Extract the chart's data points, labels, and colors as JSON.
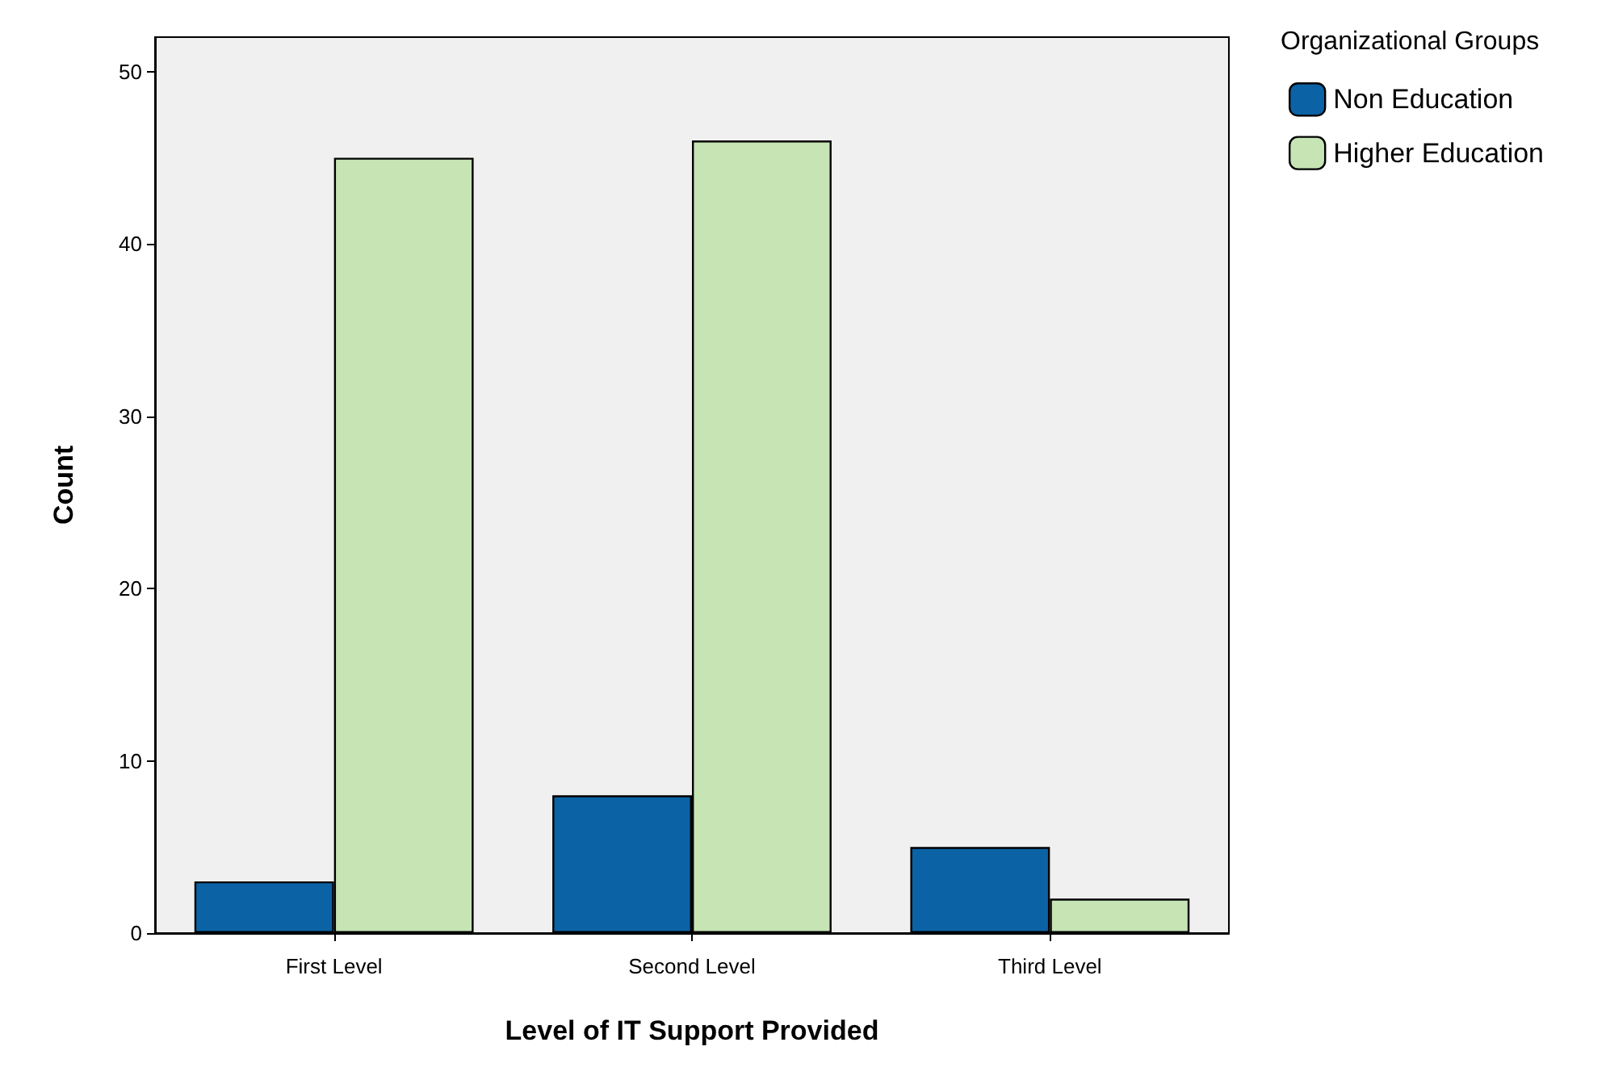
{
  "chart_data": {
    "type": "bar",
    "xlabel": "Level of IT Support Provided",
    "ylabel": "Count",
    "legend_title": "Organizational Groups",
    "categories": [
      "First Level",
      "Second Level",
      "Third Level"
    ],
    "series": [
      {
        "name": "Non Education",
        "color": "#0b63a5",
        "values": [
          3,
          8,
          5
        ]
      },
      {
        "name": "Higher Education",
        "color": "#c6e4b4",
        "values": [
          45,
          46,
          2
        ]
      }
    ],
    "ylim": [
      0,
      52
    ],
    "yticks": [
      0,
      10,
      20,
      30,
      40,
      50
    ],
    "grid": false,
    "legend": "top right"
  }
}
